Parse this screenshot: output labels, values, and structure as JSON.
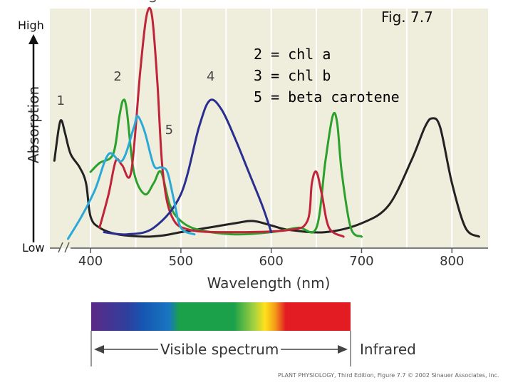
{
  "figure_label": "Fig. 7.7",
  "y_high": "High",
  "y_low": "Low",
  "key": [
    "2 = chl a",
    "3 = chl b",
    "5 = beta carotene"
  ],
  "visible_spectrum_label": "Visible spectrum",
  "infrared_label": "Infrared",
  "credit": "PLANT PHYSIOLOGY, Third Edition, Figure 7.7 © 2002 Sinauer Associates, Inc.",
  "chart_data": {
    "type": "line",
    "title": "",
    "xlabel": "Wavelength (nm)",
    "ylabel": "Absorption",
    "xlim": [
      355,
      840
    ],
    "ylim": [
      0,
      1
    ],
    "xticks": [
      400,
      500,
      600,
      700,
      800
    ],
    "grid": true,
    "series": [
      {
        "name": "1",
        "color": "#222222",
        "points": [
          [
            360,
            0.35
          ],
          [
            365,
            0.5
          ],
          [
            368,
            0.53
          ],
          [
            372,
            0.47
          ],
          [
            378,
            0.38
          ],
          [
            388,
            0.32
          ],
          [
            395,
            0.25
          ],
          [
            400,
            0.1
          ],
          [
            410,
            0.05
          ],
          [
            430,
            0.02
          ],
          [
            460,
            0.01
          ],
          [
            480,
            0.015
          ],
          [
            500,
            0.03
          ],
          [
            530,
            0.05
          ],
          [
            560,
            0.07
          ],
          [
            580,
            0.08
          ],
          [
            600,
            0.06
          ],
          [
            620,
            0.04
          ],
          [
            660,
            0.03
          ],
          [
            700,
            0.07
          ],
          [
            730,
            0.15
          ],
          [
            755,
            0.35
          ],
          [
            770,
            0.5
          ],
          [
            778,
            0.54
          ],
          [
            787,
            0.5
          ],
          [
            800,
            0.25
          ],
          [
            815,
            0.05
          ],
          [
            830,
            0.01
          ]
        ]
      },
      {
        "name": "2",
        "color": "#2ca02c",
        "points": [
          [
            400,
            0.3
          ],
          [
            410,
            0.34
          ],
          [
            425,
            0.38
          ],
          [
            432,
            0.55
          ],
          [
            436,
            0.62
          ],
          [
            440,
            0.58
          ],
          [
            448,
            0.3
          ],
          [
            460,
            0.2
          ],
          [
            470,
            0.25
          ],
          [
            478,
            0.3
          ],
          [
            488,
            0.15
          ],
          [
            500,
            0.08
          ],
          [
            520,
            0.04
          ],
          [
            560,
            0.02
          ],
          [
            600,
            0.03
          ],
          [
            630,
            0.05
          ],
          [
            650,
            0.05
          ],
          [
            660,
            0.35
          ],
          [
            668,
            0.55
          ],
          [
            673,
            0.52
          ],
          [
            678,
            0.3
          ],
          [
            688,
            0.05
          ],
          [
            700,
            0.01
          ]
        ]
      },
      {
        "name": "3",
        "color": "#c0243a",
        "points": [
          [
            410,
            0.05
          ],
          [
            420,
            0.2
          ],
          [
            428,
            0.35
          ],
          [
            435,
            0.33
          ],
          [
            445,
            0.3
          ],
          [
            455,
            0.75
          ],
          [
            462,
            1.0
          ],
          [
            468,
            1.0
          ],
          [
            474,
            0.7
          ],
          [
            480,
            0.3
          ],
          [
            490,
            0.1
          ],
          [
            510,
            0.04
          ],
          [
            560,
            0.03
          ],
          [
            620,
            0.04
          ],
          [
            640,
            0.08
          ],
          [
            645,
            0.25
          ],
          [
            650,
            0.3
          ],
          [
            656,
            0.2
          ],
          [
            664,
            0.05
          ],
          [
            680,
            0.01
          ]
        ]
      },
      {
        "name": "4",
        "color": "#2a2f8f",
        "points": [
          [
            415,
            0.03
          ],
          [
            440,
            0.02
          ],
          [
            470,
            0.05
          ],
          [
            500,
            0.2
          ],
          [
            520,
            0.5
          ],
          [
            532,
            0.62
          ],
          [
            545,
            0.58
          ],
          [
            560,
            0.45
          ],
          [
            575,
            0.3
          ],
          [
            590,
            0.15
          ],
          [
            600,
            0.03
          ]
        ]
      },
      {
        "name": "5",
        "color": "#2aa8d8",
        "points": [
          [
            375,
            0.0
          ],
          [
            390,
            0.1
          ],
          [
            405,
            0.22
          ],
          [
            420,
            0.38
          ],
          [
            435,
            0.35
          ],
          [
            448,
            0.5
          ],
          [
            452,
            0.55
          ],
          [
            460,
            0.48
          ],
          [
            470,
            0.33
          ],
          [
            478,
            0.32
          ],
          [
            485,
            0.3
          ],
          [
            492,
            0.18
          ],
          [
            500,
            0.05
          ],
          [
            515,
            0.02
          ]
        ]
      }
    ]
  }
}
